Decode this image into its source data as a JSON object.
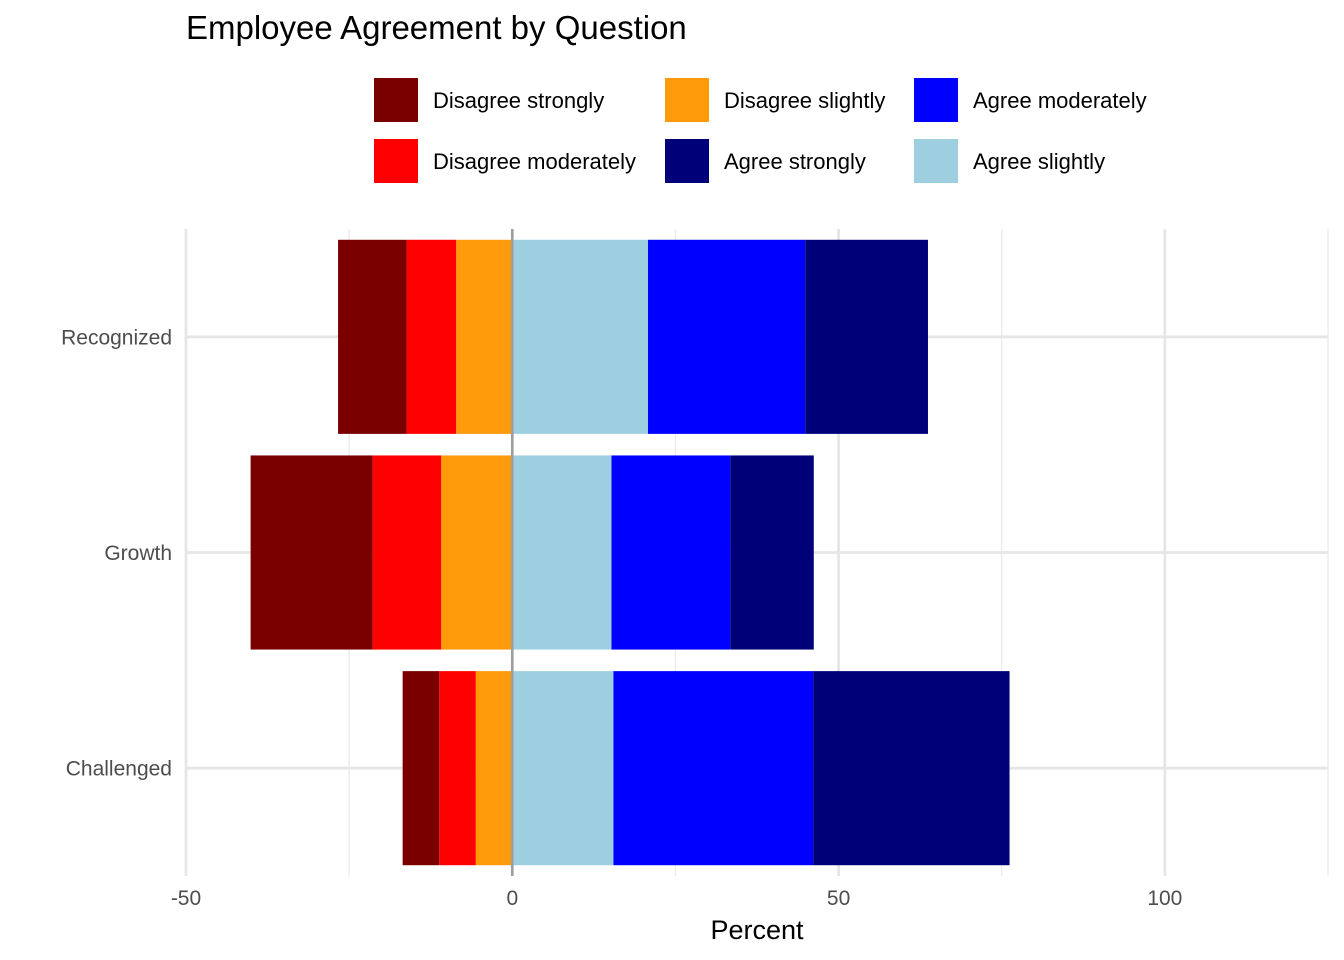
{
  "chart_data": {
    "type": "bar",
    "orientation": "horizontal",
    "stacked": "diverging",
    "title": "Employee Agreement by Question",
    "xlabel": "Percent",
    "ylabel": "",
    "xlim": [
      -50,
      125
    ],
    "x_ticks": [
      -50,
      0,
      50,
      100
    ],
    "x_tick_labels": [
      "-50",
      "0",
      "50",
      "100"
    ],
    "categories": [
      "Recognized",
      "Growth",
      "Challenged"
    ],
    "grid": true,
    "legend_position": "top",
    "legend_order": [
      "Disagree strongly",
      "Disagree moderately",
      "Disagree slightly",
      "Agree strongly",
      "Agree moderately",
      "Agree slightly"
    ],
    "series": [
      {
        "name": "Disagree strongly",
        "color": "#7a0000",
        "side": "negative",
        "values": [
          10.5,
          18.7,
          5.6
        ]
      },
      {
        "name": "Disagree moderately",
        "color": "#ff0000",
        "side": "negative",
        "values": [
          7.6,
          10.5,
          5.6
        ]
      },
      {
        "name": "Disagree slightly",
        "color": "#ff9a0a",
        "side": "negative",
        "values": [
          8.6,
          10.9,
          5.6
        ]
      },
      {
        "name": "Agree slightly",
        "color": "#9ecfe0",
        "side": "positive",
        "values": [
          20.8,
          15.2,
          15.5
        ]
      },
      {
        "name": "Agree moderately",
        "color": "#0000ff",
        "side": "positive",
        "values": [
          24.1,
          18.2,
          30.6
        ]
      },
      {
        "name": "Agree strongly",
        "color": "#000078",
        "side": "positive",
        "values": [
          18.8,
          12.8,
          30.1
        ]
      }
    ]
  }
}
